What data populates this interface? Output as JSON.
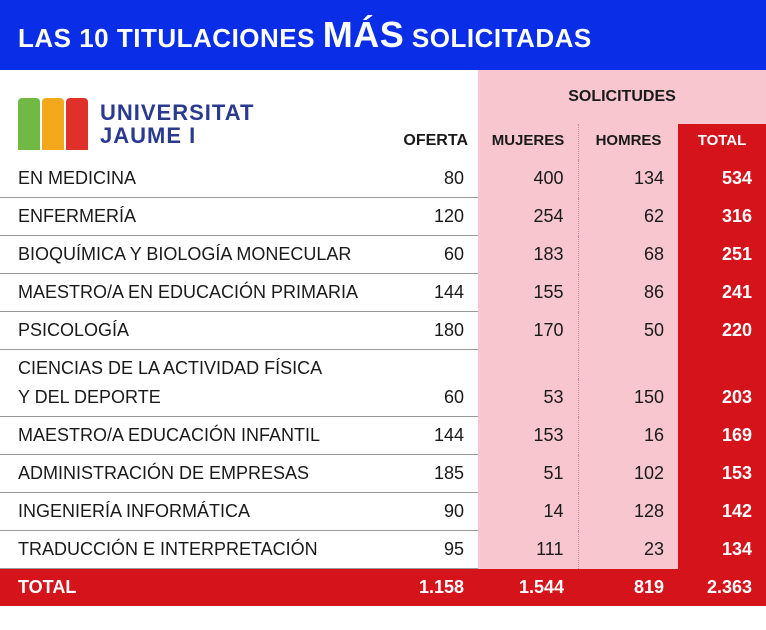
{
  "header": {
    "pre": "LAS 10 TITULACIONES ",
    "mas": "MÁS",
    "post": " SOLICITADAS"
  },
  "logo": {
    "line1": "UNIVERSITAT",
    "line2": "JAUME I",
    "bars": [
      {
        "color": "#6fb944",
        "h": 52
      },
      {
        "color": "#f4a81c",
        "h": 52
      },
      {
        "color": "#e0302a",
        "h": 52
      }
    ]
  },
  "columns": {
    "oferta": "OFERTA",
    "solicitudes": "SOLICITUDES",
    "mujeres": "MUJERES",
    "hombres": "HOMRES",
    "total": "TOTAL"
  },
  "colors": {
    "header_bg": "#0a2ee8",
    "pink": "#f7c6cf",
    "red": "#d4131a",
    "text": "#1a1a1a",
    "logo_text": "#2a3a8f",
    "row_border": "#999"
  },
  "rows": [
    {
      "name": "EN MEDICINA",
      "oferta": "80",
      "mujeres": "400",
      "hombres": "134",
      "total": "534"
    },
    {
      "name": "ENFERMERÍA",
      "oferta": "120",
      "mujeres": "254",
      "hombres": "62",
      "total": "316"
    },
    {
      "name": "BIOQUÍMICA Y BIOLOGÍA MONECULAR",
      "oferta": "60",
      "mujeres": "183",
      "hombres": "68",
      "total": "251"
    },
    {
      "name": "MAESTRO/A EN EDUCACIÓN PRIMARIA",
      "oferta": "144",
      "mujeres": "155",
      "hombres": "86",
      "total": "241"
    },
    {
      "name": "PSICOLOGÍA",
      "oferta": "180",
      "mujeres": "170",
      "hombres": "50",
      "total": "220"
    },
    {
      "name": "CIENCIAS DE LA ACTIVIDAD FÍSICA",
      "name2": "Y DEL DEPORTE",
      "oferta": "60",
      "mujeres": "53",
      "hombres": "150",
      "total": "203"
    },
    {
      "name": "MAESTRO/A EDUCACIÓN INFANTIL",
      "oferta": "144",
      "mujeres": "153",
      "hombres": "16",
      "total": "169"
    },
    {
      "name": "ADMINISTRACIÓN DE EMPRESAS",
      "oferta": "185",
      "mujeres": "51",
      "hombres": "102",
      "total": "153"
    },
    {
      "name": "INGENIERÍA INFORMÁTICA",
      "oferta": "90",
      "mujeres": "14",
      "hombres": "128",
      "total": "142"
    },
    {
      "name": "TRADUCCIÓN E INTERPRETACIÓN",
      "oferta": "95",
      "mujeres": "111",
      "hombres": "23",
      "total": "134"
    }
  ],
  "totals": {
    "label": "TOTAL",
    "oferta": "1.158",
    "mujeres": "1.544",
    "hombres": "819",
    "total": "2.363"
  }
}
